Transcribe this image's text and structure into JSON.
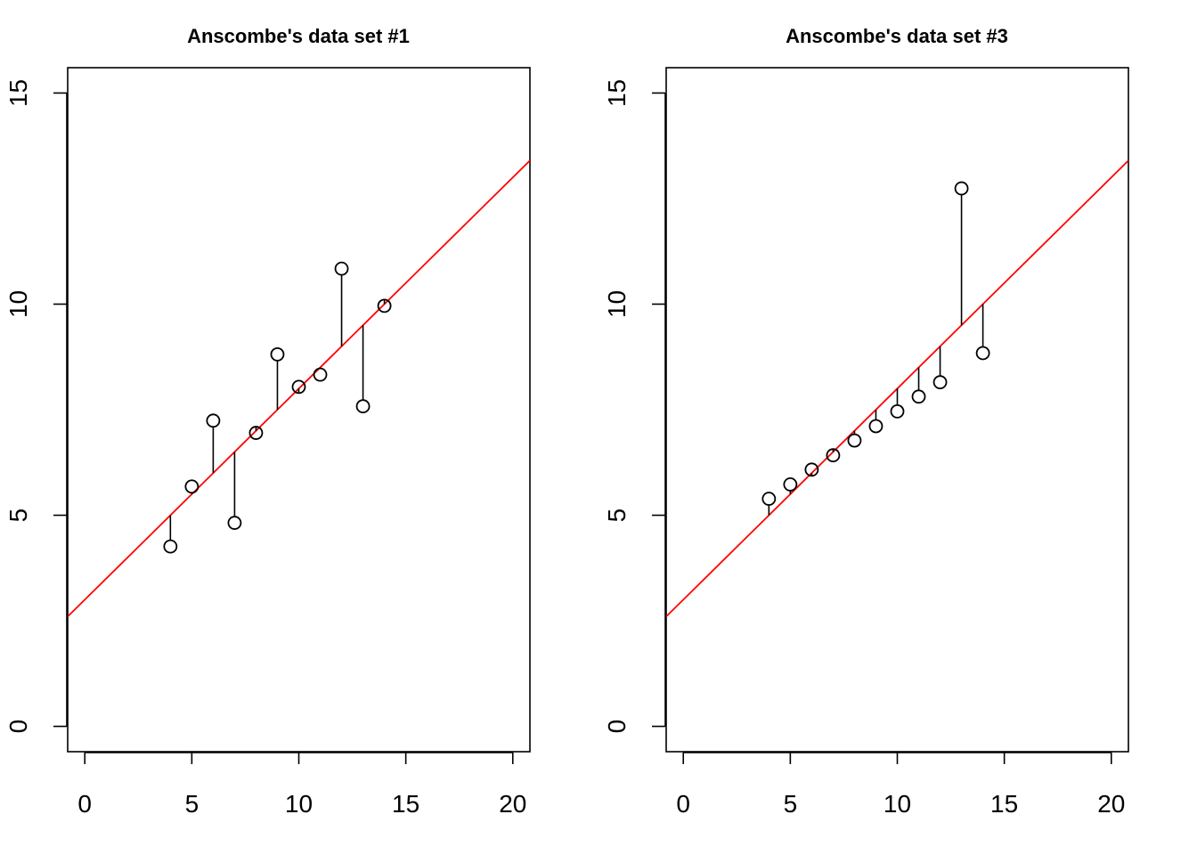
{
  "chart_data": [
    {
      "type": "scatter",
      "title": "Anscombe's data set #1",
      "xlabel": "",
      "ylabel": "",
      "xlim": [
        -0.8,
        20.8
      ],
      "ylim": [
        -0.6,
        15.6
      ],
      "x_ticks": [
        0,
        5,
        10,
        15,
        20
      ],
      "y_ticks": [
        0,
        5,
        10,
        15
      ],
      "grid": false,
      "regression_line": {
        "intercept": 3.0,
        "slope": 0.5,
        "color": "#ff0000"
      },
      "residual_segments": true,
      "points": [
        {
          "x": 4,
          "y": 4.26
        },
        {
          "x": 5,
          "y": 5.68
        },
        {
          "x": 6,
          "y": 7.24
        },
        {
          "x": 7,
          "y": 4.82
        },
        {
          "x": 8,
          "y": 6.95
        },
        {
          "x": 9,
          "y": 8.81
        },
        {
          "x": 10,
          "y": 8.04
        },
        {
          "x": 11,
          "y": 8.33
        },
        {
          "x": 12,
          "y": 10.84
        },
        {
          "x": 13,
          "y": 7.58
        },
        {
          "x": 14,
          "y": 9.96
        }
      ]
    },
    {
      "type": "scatter",
      "title": "Anscombe's data set #3",
      "xlabel": "",
      "ylabel": "",
      "xlim": [
        -0.8,
        20.8
      ],
      "ylim": [
        -0.6,
        15.6
      ],
      "x_ticks": [
        0,
        5,
        10,
        15,
        20
      ],
      "y_ticks": [
        0,
        5,
        10,
        15
      ],
      "grid": false,
      "regression_line": {
        "intercept": 3.0,
        "slope": 0.5,
        "color": "#ff0000"
      },
      "residual_segments": true,
      "points": [
        {
          "x": 4,
          "y": 5.39
        },
        {
          "x": 5,
          "y": 5.73
        },
        {
          "x": 6,
          "y": 6.08
        },
        {
          "x": 7,
          "y": 6.42
        },
        {
          "x": 8,
          "y": 6.77
        },
        {
          "x": 9,
          "y": 7.11
        },
        {
          "x": 10,
          "y": 7.46
        },
        {
          "x": 11,
          "y": 7.81
        },
        {
          "x": 12,
          "y": 8.15
        },
        {
          "x": 13,
          "y": 12.74
        },
        {
          "x": 14,
          "y": 8.84
        }
      ]
    }
  ]
}
